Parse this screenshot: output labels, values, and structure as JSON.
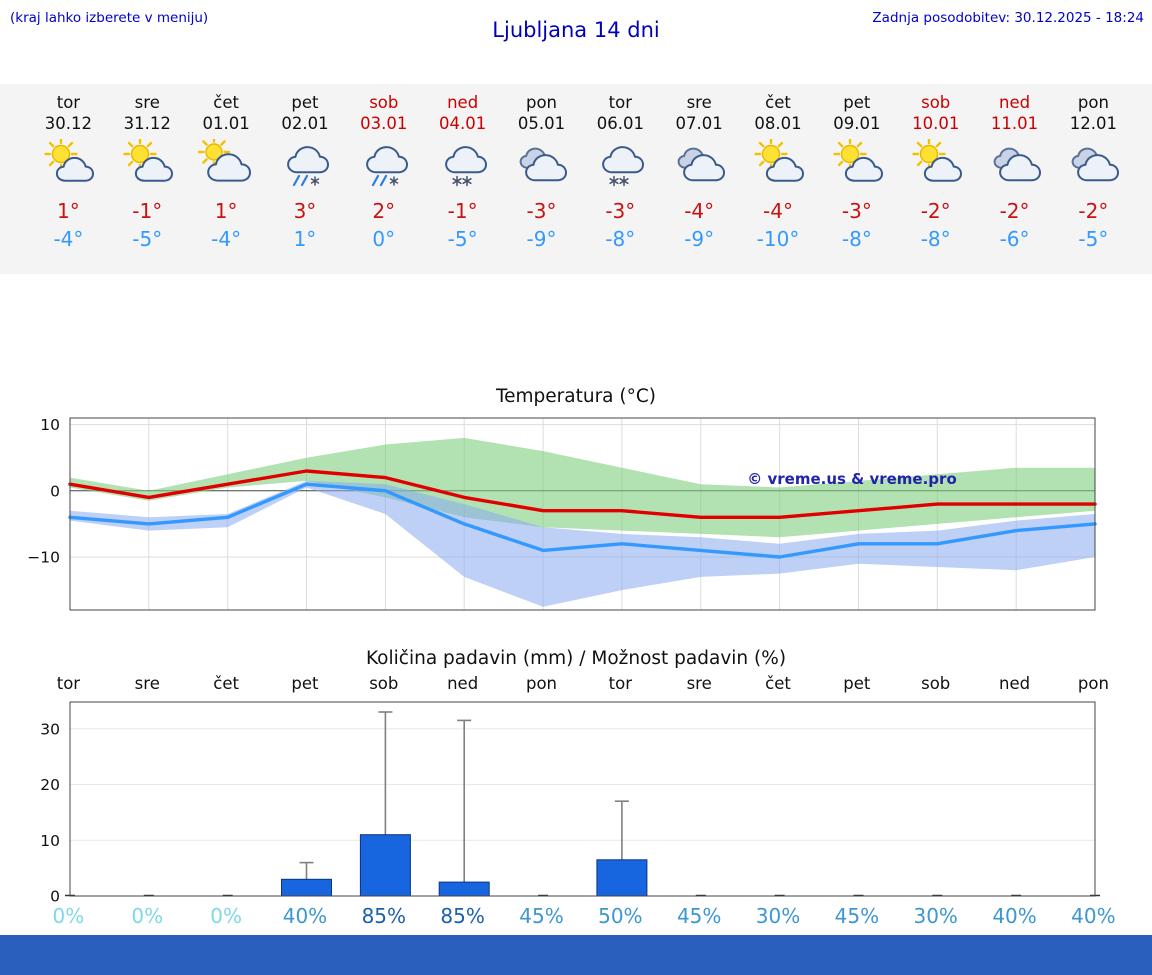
{
  "header": {
    "menu_hint": "(kraj lahko izberete v meniju)",
    "title": "Ljubljana 14 dni",
    "last_updated": "Zadnja posodobitev: 30.12.2025 - 18:24"
  },
  "colors": {
    "link_blue": "#0000cc",
    "high_red": "#cc1111",
    "low_blue": "#3399ff",
    "weekend_red": "#cc0000",
    "bar_blue": "#1766e0",
    "footer_blue": "#2a5fbd",
    "prob_low": "#7fd8e8",
    "prob_mid": "#3e96d2",
    "prob_high": "#1c5fae"
  },
  "forecast_days": [
    {
      "day": "tor",
      "date": "30.12",
      "weekend": false,
      "icon": "sun-cloud",
      "high": "1°",
      "low": "-4°"
    },
    {
      "day": "sre",
      "date": "31.12",
      "weekend": false,
      "icon": "sun-cloud",
      "high": "-1°",
      "low": "-5°"
    },
    {
      "day": "čet",
      "date": "01.01",
      "weekend": false,
      "icon": "cloud-sun",
      "high": "1°",
      "low": "-4°"
    },
    {
      "day": "pet",
      "date": "02.01",
      "weekend": false,
      "icon": "sleet",
      "high": "3°",
      "low": "1°"
    },
    {
      "day": "sob",
      "date": "03.01",
      "weekend": true,
      "icon": "sleet",
      "high": "2°",
      "low": "0°"
    },
    {
      "day": "ned",
      "date": "04.01",
      "weekend": true,
      "icon": "snow",
      "high": "-1°",
      "low": "-5°"
    },
    {
      "day": "pon",
      "date": "05.01",
      "weekend": false,
      "icon": "cloud",
      "high": "-3°",
      "low": "-9°"
    },
    {
      "day": "tor",
      "date": "06.01",
      "weekend": false,
      "icon": "snow",
      "high": "-3°",
      "low": "-8°"
    },
    {
      "day": "sre",
      "date": "07.01",
      "weekend": false,
      "icon": "cloud",
      "high": "-4°",
      "low": "-9°"
    },
    {
      "day": "čet",
      "date": "08.01",
      "weekend": false,
      "icon": "sun-cloud",
      "high": "-4°",
      "low": "-10°"
    },
    {
      "day": "pet",
      "date": "09.01",
      "weekend": false,
      "icon": "sun-cloud",
      "high": "-3°",
      "low": "-8°"
    },
    {
      "day": "sob",
      "date": "10.01",
      "weekend": true,
      "icon": "sun-cloud",
      "high": "-2°",
      "low": "-8°"
    },
    {
      "day": "ned",
      "date": "11.01",
      "weekend": true,
      "icon": "cloud",
      "high": "-2°",
      "low": "-6°"
    },
    {
      "day": "pon",
      "date": "12.01",
      "weekend": false,
      "icon": "cloud",
      "high": "-2°",
      "low": "-5°"
    }
  ],
  "chart_data": [
    {
      "type": "line",
      "title": "Temperatura (°C)",
      "x_labels": [
        "tor",
        "sre",
        "čet",
        "pet",
        "sob",
        "ned",
        "pon",
        "tor",
        "sre",
        "čet",
        "pet",
        "sob",
        "ned",
        "pon"
      ],
      "ylim": [
        -18,
        11
      ],
      "yticks": [
        10,
        0,
        -10
      ],
      "series": [
        {
          "name": "max-temp",
          "color": "#e00000",
          "values": [
            1,
            -1,
            1,
            3,
            2,
            -1,
            -3,
            -3,
            -4,
            -4,
            -3,
            -2,
            -2,
            -2
          ]
        },
        {
          "name": "min-temp",
          "color": "#3399ff",
          "values": [
            -4,
            -5,
            -4,
            1,
            0,
            -5,
            -9,
            -8,
            -9,
            -10,
            -8,
            -8,
            -6,
            -5
          ]
        }
      ],
      "bands": [
        {
          "name": "max-temp-range",
          "color": "#7ecf7e",
          "opacity": 0.6,
          "upper": [
            2,
            0,
            2.5,
            5,
            7,
            8,
            6,
            3.5,
            1,
            0.5,
            1.5,
            2.5,
            3.5,
            3.5
          ],
          "lower": [
            0.5,
            -1.5,
            0.5,
            1.5,
            -1,
            -4,
            -5.5,
            -6,
            -6.5,
            -7,
            -6,
            -5,
            -4,
            -3
          ]
        },
        {
          "name": "min-temp-range",
          "color": "#88aaee",
          "opacity": 0.55,
          "upper": [
            -3,
            -4,
            -3.5,
            1.5,
            1,
            -2,
            -5.5,
            -6.5,
            -7,
            -8,
            -6.5,
            -6,
            -4.5,
            -3.5
          ],
          "lower": [
            -4.5,
            -6,
            -5.5,
            0.5,
            -3.5,
            -13,
            -17.5,
            -15,
            -13,
            -12.5,
            -11,
            -11.5,
            -12,
            -10
          ]
        }
      ],
      "watermark": "© vreme.us & vreme.pro"
    },
    {
      "type": "bar",
      "title": "Količina padavin (mm) / Možnost padavin (%)",
      "categories": [
        "tor",
        "sre",
        "čet",
        "pet",
        "sob",
        "ned",
        "pon",
        "tor",
        "sre",
        "čet",
        "pet",
        "sob",
        "ned",
        "pon"
      ],
      "values_mm": [
        0,
        0,
        0,
        3,
        11,
        2.5,
        0,
        6.5,
        0,
        0,
        0,
        0,
        0,
        0
      ],
      "whisker_max_mm": [
        0,
        0,
        0,
        6,
        33,
        31.5,
        0,
        17,
        0,
        0,
        0,
        0,
        0,
        0
      ],
      "probability_pct": [
        0,
        0,
        0,
        40,
        85,
        85,
        45,
        50,
        45,
        30,
        45,
        30,
        40,
        40
      ],
      "yticks": [
        0,
        10,
        20,
        30
      ],
      "ylim": [
        0,
        34.8
      ]
    }
  ]
}
